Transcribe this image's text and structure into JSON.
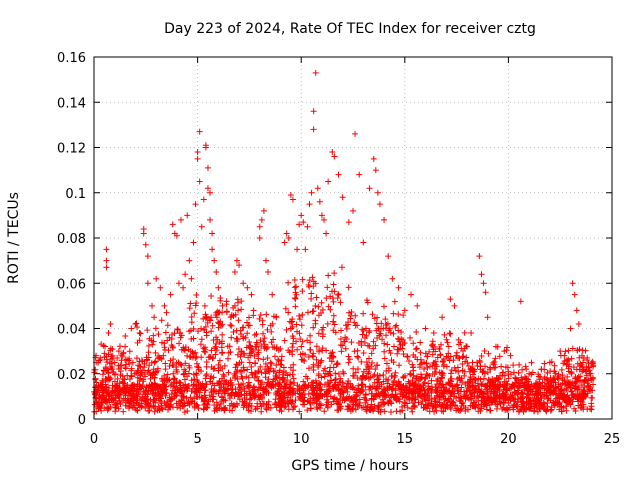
{
  "chart_data": {
    "type": "scatter",
    "title": "Day 223 of 2024, Rate Of TEC Index for receiver cztg",
    "xlabel": "GPS time / hours",
    "ylabel": "ROTI / TECUs",
    "xlim": [
      0,
      25
    ],
    "ylim": [
      0,
      0.16
    ],
    "x_ticks": [
      "0",
      "5",
      "10",
      "15",
      "20",
      "25"
    ],
    "y_ticks": [
      "0",
      "0.02",
      "0.04",
      "0.06",
      "0.08",
      "0.1",
      "0.12",
      "0.14",
      "0.16"
    ],
    "grid": true,
    "legend": "none",
    "marker": "+",
    "color": "#ff0000",
    "series": [
      {
        "points": [
          [
            0.1,
            0.028
          ],
          [
            0.3,
            0.027
          ],
          [
            0.5,
            0.029
          ],
          [
            0.6,
            0.075
          ],
          [
            0.6,
            0.07
          ],
          [
            0.6,
            0.067
          ],
          [
            0.7,
            0.038
          ],
          [
            0.8,
            0.042
          ],
          [
            1.0,
            0.025
          ],
          [
            1.2,
            0.03
          ],
          [
            1.5,
            0.032
          ],
          [
            1.8,
            0.04
          ],
          [
            2.0,
            0.042
          ],
          [
            2.2,
            0.038
          ],
          [
            2.4,
            0.084
          ],
          [
            2.4,
            0.082
          ],
          [
            2.5,
            0.077
          ],
          [
            2.6,
            0.072
          ],
          [
            2.6,
            0.06
          ],
          [
            2.8,
            0.05
          ],
          [
            2.9,
            0.045
          ],
          [
            3.0,
            0.062
          ],
          [
            3.2,
            0.058
          ],
          [
            3.4,
            0.05
          ],
          [
            3.5,
            0.047
          ],
          [
            3.7,
            0.055
          ],
          [
            3.8,
            0.086
          ],
          [
            3.9,
            0.082
          ],
          [
            4.0,
            0.081
          ],
          [
            4.1,
            0.06
          ],
          [
            4.2,
            0.088
          ],
          [
            4.3,
            0.058
          ],
          [
            4.4,
            0.064
          ],
          [
            4.5,
            0.09
          ],
          [
            4.6,
            0.07
          ],
          [
            4.7,
            0.062
          ],
          [
            4.8,
            0.078
          ],
          [
            4.9,
            0.095
          ],
          [
            5.0,
            0.115
          ],
          [
            5.0,
            0.118
          ],
          [
            5.1,
            0.127
          ],
          [
            5.1,
            0.105
          ],
          [
            5.2,
            0.085
          ],
          [
            5.3,
            0.097
          ],
          [
            5.4,
            0.12
          ],
          [
            5.4,
            0.121
          ],
          [
            5.5,
            0.111
          ],
          [
            5.5,
            0.102
          ],
          [
            5.6,
            0.1
          ],
          [
            5.6,
            0.088
          ],
          [
            5.7,
            0.082
          ],
          [
            5.7,
            0.075
          ],
          [
            5.8,
            0.07
          ],
          [
            5.9,
            0.065
          ],
          [
            6.0,
            0.058
          ],
          [
            6.2,
            0.05
          ],
          [
            6.4,
            0.052
          ],
          [
            6.6,
            0.045
          ],
          [
            6.8,
            0.05
          ],
          [
            6.8,
            0.065
          ],
          [
            6.9,
            0.07
          ],
          [
            7.0,
            0.068
          ],
          [
            7.2,
            0.06
          ],
          [
            7.4,
            0.058
          ],
          [
            7.6,
            0.055
          ],
          [
            7.7,
            0.048
          ],
          [
            8.0,
            0.08
          ],
          [
            8.0,
            0.085
          ],
          [
            8.1,
            0.088
          ],
          [
            8.2,
            0.092
          ],
          [
            8.3,
            0.07
          ],
          [
            8.4,
            0.065
          ],
          [
            8.6,
            0.055
          ],
          [
            8.8,
            0.045
          ],
          [
            9.2,
            0.078
          ],
          [
            9.3,
            0.082
          ],
          [
            9.4,
            0.08
          ],
          [
            9.5,
            0.099
          ],
          [
            9.6,
            0.097
          ],
          [
            9.8,
            0.075
          ],
          [
            9.9,
            0.086
          ],
          [
            10.0,
            0.09
          ],
          [
            10.1,
            0.087
          ],
          [
            10.2,
            0.075
          ],
          [
            10.3,
            0.085
          ],
          [
            10.4,
            0.095
          ],
          [
            10.5,
            0.1
          ],
          [
            10.6,
            0.128
          ],
          [
            10.6,
            0.136
          ],
          [
            10.7,
            0.153
          ],
          [
            10.8,
            0.102
          ],
          [
            10.9,
            0.096
          ],
          [
            11.0,
            0.09
          ],
          [
            11.1,
            0.088
          ],
          [
            11.2,
            0.082
          ],
          [
            11.3,
            0.105
          ],
          [
            11.5,
            0.118
          ],
          [
            11.6,
            0.116
          ],
          [
            11.8,
            0.108
          ],
          [
            12.0,
            0.098
          ],
          [
            12.3,
            0.087
          ],
          [
            12.5,
            0.092
          ],
          [
            12.6,
            0.126
          ],
          [
            12.8,
            0.108
          ],
          [
            13.0,
            0.078
          ],
          [
            13.3,
            0.102
          ],
          [
            13.5,
            0.115
          ],
          [
            13.6,
            0.11
          ],
          [
            13.7,
            0.1
          ],
          [
            13.8,
            0.095
          ],
          [
            14.0,
            0.088
          ],
          [
            14.2,
            0.072
          ],
          [
            14.4,
            0.062
          ],
          [
            14.7,
            0.058
          ],
          [
            15.0,
            0.048
          ],
          [
            15.3,
            0.055
          ],
          [
            15.6,
            0.05
          ],
          [
            16.0,
            0.04
          ],
          [
            16.4,
            0.038
          ],
          [
            16.8,
            0.045
          ],
          [
            17.2,
            0.053
          ],
          [
            17.4,
            0.05
          ],
          [
            17.6,
            0.035
          ],
          [
            18.0,
            0.032
          ],
          [
            18.2,
            0.038
          ],
          [
            18.6,
            0.072
          ],
          [
            18.7,
            0.064
          ],
          [
            18.8,
            0.06
          ],
          [
            18.9,
            0.056
          ],
          [
            19.0,
            0.045
          ],
          [
            19.4,
            0.032
          ],
          [
            19.8,
            0.03
          ],
          [
            20.1,
            0.028
          ],
          [
            20.6,
            0.052
          ],
          [
            21.0,
            0.02
          ],
          [
            21.6,
            0.022
          ],
          [
            22.0,
            0.025
          ],
          [
            22.5,
            0.03
          ],
          [
            22.7,
            0.028
          ],
          [
            23.0,
            0.04
          ],
          [
            23.1,
            0.06
          ],
          [
            23.2,
            0.055
          ],
          [
            23.3,
            0.048
          ],
          [
            23.4,
            0.042
          ],
          [
            23.6,
            0.025
          ],
          [
            23.9,
            0.02
          ]
        ]
      }
    ],
    "background_points_note_removed": null
  }
}
